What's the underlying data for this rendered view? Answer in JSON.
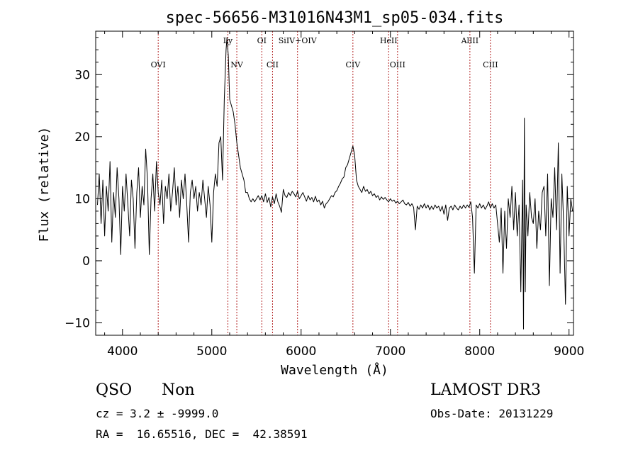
{
  "chart_data": {
    "type": "line",
    "title": "spec-56656-M31016N43M1_sp05-034.fits",
    "xlabel": "Wavelength (Å)",
    "ylabel": "Flux (relative)",
    "xlim": [
      3700,
      9050
    ],
    "ylim": [
      -12,
      37
    ],
    "xticks": [
      4000,
      5000,
      6000,
      7000,
      8000,
      9000
    ],
    "yticks": [
      -10,
      0,
      10,
      20,
      30
    ],
    "grid": false,
    "legend": "none",
    "line_color": "#000000",
    "marker_color": "#b22222",
    "emission_lines": [
      {
        "label": "OVI",
        "x": 4400
      },
      {
        "label": "Ly",
        "x": 5180
      },
      {
        "label": "NV",
        "x": 5280
      },
      {
        "label": "OI",
        "x": 5560
      },
      {
        "label": "CII",
        "x": 5680
      },
      {
        "label": "SiIV+OIV",
        "x": 5960
      },
      {
        "label": "CIV",
        "x": 6580
      },
      {
        "label": "HeII",
        "x": 6980
      },
      {
        "label": "OIII",
        "x": 7080
      },
      {
        "label": "AlIII",
        "x": 7890
      },
      {
        "label": "CIII",
        "x": 8120
      }
    ],
    "spectrum": [
      [
        3720,
        9
      ],
      [
        3740,
        14
      ],
      [
        3760,
        6
      ],
      [
        3780,
        13
      ],
      [
        3800,
        4
      ],
      [
        3820,
        12
      ],
      [
        3840,
        8
      ],
      [
        3860,
        16
      ],
      [
        3880,
        3
      ],
      [
        3900,
        11
      ],
      [
        3920,
        7
      ],
      [
        3940,
        15
      ],
      [
        3960,
        10
      ],
      [
        3980,
        1
      ],
      [
        4000,
        12
      ],
      [
        4020,
        8
      ],
      [
        4040,
        14
      ],
      [
        4060,
        9
      ],
      [
        4080,
        4
      ],
      [
        4100,
        13
      ],
      [
        4120,
        10
      ],
      [
        4140,
        2
      ],
      [
        4160,
        11
      ],
      [
        4180,
        15
      ],
      [
        4200,
        7
      ],
      [
        4220,
        12
      ],
      [
        4240,
        9
      ],
      [
        4260,
        18
      ],
      [
        4280,
        13
      ],
      [
        4300,
        1
      ],
      [
        4320,
        10
      ],
      [
        4340,
        14
      ],
      [
        4360,
        8
      ],
      [
        4380,
        16
      ],
      [
        4400,
        11
      ],
      [
        4420,
        9
      ],
      [
        4440,
        13
      ],
      [
        4460,
        6
      ],
      [
        4480,
        12
      ],
      [
        4500,
        10
      ],
      [
        4520,
        14
      ],
      [
        4540,
        8
      ],
      [
        4560,
        11
      ],
      [
        4580,
        15
      ],
      [
        4600,
        9
      ],
      [
        4620,
        12
      ],
      [
        4640,
        7
      ],
      [
        4660,
        13
      ],
      [
        4680,
        10
      ],
      [
        4700,
        14
      ],
      [
        4720,
        9
      ],
      [
        4740,
        3
      ],
      [
        4760,
        11
      ],
      [
        4780,
        13
      ],
      [
        4800,
        10
      ],
      [
        4820,
        12
      ],
      [
        4840,
        8
      ],
      [
        4860,
        11
      ],
      [
        4880,
        9
      ],
      [
        4900,
        13
      ],
      [
        4920,
        10
      ],
      [
        4940,
        7
      ],
      [
        4960,
        12
      ],
      [
        4980,
        9
      ],
      [
        5000,
        3
      ],
      [
        5020,
        11
      ],
      [
        5040,
        14
      ],
      [
        5060,
        12
      ],
      [
        5080,
        19
      ],
      [
        5100,
        20
      ],
      [
        5120,
        13
      ],
      [
        5140,
        26
      ],
      [
        5160,
        34
      ],
      [
        5170,
        36
      ],
      [
        5185,
        33
      ],
      [
        5200,
        26
      ],
      [
        5220,
        25
      ],
      [
        5240,
        24
      ],
      [
        5260,
        22
      ],
      [
        5280,
        19
      ],
      [
        5300,
        17
      ],
      [
        5320,
        15
      ],
      [
        5340,
        14
      ],
      [
        5360,
        13
      ],
      [
        5380,
        11
      ],
      [
        5400,
        11
      ],
      [
        5420,
        10
      ],
      [
        5440,
        9.5
      ],
      [
        5460,
        10
      ],
      [
        5480,
        9.5
      ],
      [
        5500,
        10
      ],
      [
        5520,
        10.5
      ],
      [
        5540,
        9.8
      ],
      [
        5560,
        10.5
      ],
      [
        5580,
        9.5
      ],
      [
        5600,
        10.8
      ],
      [
        5620,
        9.4
      ],
      [
        5640,
        10.2
      ],
      [
        5660,
        8.7
      ],
      [
        5680,
        10.3
      ],
      [
        5700,
        9.2
      ],
      [
        5720,
        10.8
      ],
      [
        5740,
        9.5
      ],
      [
        5760,
        8.8
      ],
      [
        5780,
        7.8
      ],
      [
        5800,
        11.5
      ],
      [
        5820,
        10.5
      ],
      [
        5840,
        10.2
      ],
      [
        5860,
        11
      ],
      [
        5880,
        10.5
      ],
      [
        5900,
        11.2
      ],
      [
        5920,
        10.8
      ],
      [
        5940,
        10.3
      ],
      [
        5960,
        11.2
      ],
      [
        5980,
        10
      ],
      [
        6000,
        10.5
      ],
      [
        6020,
        11
      ],
      [
        6040,
        10.3
      ],
      [
        6060,
        9.6
      ],
      [
        6080,
        10.5
      ],
      [
        6100,
        9.8
      ],
      [
        6120,
        10.2
      ],
      [
        6140,
        9.5
      ],
      [
        6160,
        10.4
      ],
      [
        6180,
        9.5
      ],
      [
        6200,
        9.8
      ],
      [
        6220,
        9
      ],
      [
        6240,
        9.6
      ],
      [
        6260,
        8.5
      ],
      [
        6280,
        9.2
      ],
      [
        6300,
        9.5
      ],
      [
        6320,
        10
      ],
      [
        6340,
        10.5
      ],
      [
        6360,
        10.3
      ],
      [
        6380,
        11
      ],
      [
        6400,
        11.3
      ],
      [
        6420,
        12
      ],
      [
        6440,
        12.5
      ],
      [
        6460,
        13.2
      ],
      [
        6480,
        13.5
      ],
      [
        6500,
        15
      ],
      [
        6520,
        15.5
      ],
      [
        6540,
        16.5
      ],
      [
        6560,
        17.5
      ],
      [
        6580,
        18.5
      ],
      [
        6600,
        17
      ],
      [
        6620,
        13
      ],
      [
        6640,
        12
      ],
      [
        6660,
        11.5
      ],
      [
        6680,
        11
      ],
      [
        6700,
        12
      ],
      [
        6720,
        11.2
      ],
      [
        6740,
        11.5
      ],
      [
        6760,
        10.8
      ],
      [
        6780,
        11.2
      ],
      [
        6800,
        10.5
      ],
      [
        6820,
        10.8
      ],
      [
        6840,
        10.2
      ],
      [
        6860,
        10.5
      ],
      [
        6880,
        9.8
      ],
      [
        6900,
        10.3
      ],
      [
        6920,
        9.9
      ],
      [
        6940,
        10.2
      ],
      [
        6960,
        9.8
      ],
      [
        6980,
        9.5
      ],
      [
        7000,
        10
      ],
      [
        7020,
        9.6
      ],
      [
        7040,
        9.8
      ],
      [
        7060,
        9.3
      ],
      [
        7080,
        9.6
      ],
      [
        7100,
        9.2
      ],
      [
        7120,
        9.5
      ],
      [
        7140,
        9.8
      ],
      [
        7160,
        9.2
      ],
      [
        7180,
        9
      ],
      [
        7200,
        9.4
      ],
      [
        7220,
        8.8
      ],
      [
        7240,
        9.2
      ],
      [
        7260,
        8.6
      ],
      [
        7280,
        5
      ],
      [
        7300,
        8.8
      ],
      [
        7320,
        8.3
      ],
      [
        7340,
        9
      ],
      [
        7360,
        8.5
      ],
      [
        7380,
        9.2
      ],
      [
        7400,
        8.5
      ],
      [
        7420,
        9
      ],
      [
        7440,
        8.2
      ],
      [
        7460,
        8.8
      ],
      [
        7480,
        8.3
      ],
      [
        7500,
        9
      ],
      [
        7520,
        8.5
      ],
      [
        7540,
        8.8
      ],
      [
        7560,
        8
      ],
      [
        7580,
        8.8
      ],
      [
        7600,
        7.5
      ],
      [
        7620,
        9
      ],
      [
        7640,
        6.5
      ],
      [
        7660,
        8.5
      ],
      [
        7680,
        8.8
      ],
      [
        7700,
        8.2
      ],
      [
        7720,
        9
      ],
      [
        7740,
        8.5
      ],
      [
        7760,
        8.2
      ],
      [
        7780,
        8.8
      ],
      [
        7800,
        8.4
      ],
      [
        7820,
        9
      ],
      [
        7840,
        8.5
      ],
      [
        7860,
        9
      ],
      [
        7880,
        8.6
      ],
      [
        7900,
        9.5
      ],
      [
        7920,
        7
      ],
      [
        7940,
        -2
      ],
      [
        7960,
        9
      ],
      [
        7980,
        8.5
      ],
      [
        8000,
        9.2
      ],
      [
        8020,
        8.5
      ],
      [
        8040,
        9
      ],
      [
        8060,
        8.3
      ],
      [
        8080,
        8.8
      ],
      [
        8100,
        9.5
      ],
      [
        8120,
        8.5
      ],
      [
        8140,
        9.2
      ],
      [
        8160,
        8.5
      ],
      [
        8180,
        9
      ],
      [
        8200,
        6
      ],
      [
        8220,
        3
      ],
      [
        8240,
        8.5
      ],
      [
        8260,
        -2
      ],
      [
        8280,
        8
      ],
      [
        8300,
        2
      ],
      [
        8320,
        10
      ],
      [
        8340,
        7
      ],
      [
        8360,
        12
      ],
      [
        8380,
        5
      ],
      [
        8400,
        11
      ],
      [
        8420,
        4
      ],
      [
        8440,
        9
      ],
      [
        8460,
        -5
      ],
      [
        8480,
        13
      ],
      [
        8490,
        -11
      ],
      [
        8500,
        23
      ],
      [
        8510,
        -5
      ],
      [
        8520,
        9
      ],
      [
        8540,
        4
      ],
      [
        8560,
        11
      ],
      [
        8580,
        7
      ],
      [
        8600,
        6
      ],
      [
        8620,
        10
      ],
      [
        8640,
        2
      ],
      [
        8660,
        8
      ],
      [
        8680,
        5
      ],
      [
        8700,
        11
      ],
      [
        8720,
        12
      ],
      [
        8740,
        4
      ],
      [
        8760,
        14
      ],
      [
        8780,
        -4
      ],
      [
        8800,
        10
      ],
      [
        8820,
        7
      ],
      [
        8840,
        15
      ],
      [
        8860,
        5
      ],
      [
        8880,
        19
      ],
      [
        8900,
        -2
      ],
      [
        8920,
        14
      ],
      [
        8940,
        6
      ],
      [
        8960,
        -7
      ],
      [
        8980,
        12
      ],
      [
        9000,
        4
      ],
      [
        9020,
        10
      ],
      [
        9040,
        8
      ]
    ]
  },
  "info": {
    "object_class": "QSO",
    "subclass": "Non",
    "survey": "LAMOST DR3",
    "cz_line": "cz = 3.2 ± -9999.0",
    "obs_date_line": "Obs-Date: 20131229",
    "coords_line": "RA =  16.65516, DEC =  42.38591"
  }
}
